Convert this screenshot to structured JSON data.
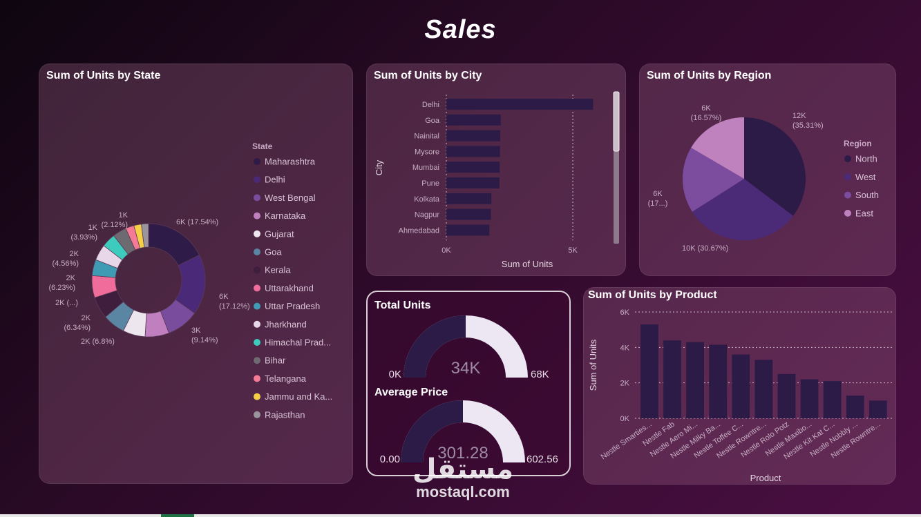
{
  "page": {
    "title": "Sales"
  },
  "colors": {
    "maharashtra": "#2f1b47",
    "delhi": "#4a2a78",
    "west_bengal": "#7a4c9e",
    "karnataka": "#c07fbf",
    "gujarat": "#eee6ef",
    "goa": "#5a86a4",
    "kerala": "#3e1e3c",
    "uttarakhand": "#f06c9b",
    "uttar_pradesh": "#3e9bb3",
    "jharkhand": "#e8d7e8",
    "himachal": "#3ccbbd",
    "bihar": "#6d6a72",
    "telangana": "#f47a95",
    "jammu": "#f5cf45",
    "rajasthan": "#9a949c",
    "north": "#2d1b47",
    "west": "#4b2a78",
    "south": "#7c4c9e",
    "east": "#bf82bf",
    "bar": "#2d1b47",
    "gauge_fill": "#2d1b47",
    "gauge_empty": "#ece7f2"
  },
  "chart_data": [
    {
      "id": "state",
      "type": "pie",
      "title": "Sum of Units by State",
      "legend_title": "State",
      "categories": [
        "Maharashtra",
        "Delhi",
        "West Bengal",
        "Karnataka",
        "Gujarat",
        "Goa",
        "Kerala",
        "Uttarakhand",
        "Uttar Pradesh",
        "Jharkhand",
        "Himachal Prad...",
        "Bihar",
        "Telangana",
        "Jammu and Ka...",
        "Rajasthan"
      ],
      "values": [
        17.54,
        17.12,
        9.14,
        6.8,
        6.34,
        6.34,
        6.23,
        6.23,
        4.56,
        4.56,
        3.93,
        3.93,
        2.4,
        2.12,
        2.02
      ],
      "data_labels": [
        {
          "value": "6K (17.54%)"
        },
        {
          "value": "6K",
          "pct": "(17.12%)"
        },
        {
          "value": "3K",
          "pct": "(9.14%)"
        },
        {
          "value": "2K (6.8%)"
        },
        {
          "value": "2K",
          "pct": "(6.34%)"
        },
        {
          "value": "2K (...)"
        },
        {
          "value": "2K",
          "pct": "(6.23%)"
        },
        {
          "value": "2K",
          "pct": "(4.56%)"
        },
        {
          "value": "1K",
          "pct": "(3.93%)"
        },
        {
          "value": "1K",
          "pct": "(2.12%)"
        }
      ]
    },
    {
      "id": "city",
      "type": "bar",
      "orientation": "horizontal",
      "title": "Sum of Units by City",
      "categories": [
        "Delhi",
        "Goa",
        "Nainital",
        "Mysore",
        "Mumbai",
        "Pune",
        "Kolkata",
        "Nagpur",
        "Ahmedabad"
      ],
      "values": [
        5800,
        2150,
        2130,
        2120,
        2110,
        2100,
        1780,
        1760,
        1700
      ],
      "xlabel": "Sum of Units",
      "ylabel": "City",
      "xticks": [
        "0K",
        "5K"
      ],
      "xlim": [
        0,
        6200
      ]
    },
    {
      "id": "region",
      "type": "pie",
      "title": "Sum of Units by Region",
      "legend_title": "Region",
      "categories": [
        "North",
        "West",
        "South",
        "East"
      ],
      "values": [
        35.31,
        30.67,
        17.45,
        16.57
      ],
      "data_labels": [
        {
          "value": "12K",
          "pct": "(35.31%)"
        },
        {
          "value": "10K (30.67%)"
        },
        {
          "value": "6K",
          "pct": "(17...)"
        },
        {
          "value": "6K",
          "pct": "(16.57%)"
        }
      ]
    },
    {
      "id": "product",
      "type": "bar",
      "title": "Sum of Units by Product",
      "categories": [
        "Nestle Smarties...",
        "Nestle Fab",
        "Nestle Aero Mi...",
        "Nestle Milky Ba...",
        "Nestle Toffee C...",
        "Nestle Rowntre...",
        "Nestle Rolo Potz",
        "Nestle Maxibo...",
        "Nestle Kit Kat C...",
        "Nestle Nobbly ...",
        "Nestle Rowntre..."
      ],
      "values": [
        5300,
        4400,
        4300,
        4150,
        3600,
        3300,
        2500,
        2200,
        2100,
        1280,
        1000
      ],
      "xlabel": "Product",
      "ylabel": "Sum of Units",
      "yticks": [
        "0K",
        "2K",
        "4K",
        "6K"
      ],
      "ylim": [
        0,
        6000
      ]
    },
    {
      "id": "total_units",
      "type": "gauge",
      "title": "Total Units",
      "value": 34000,
      "max": 68000,
      "value_label": "34K",
      "min_label": "0K",
      "max_label": "68K"
    },
    {
      "id": "average_price",
      "type": "gauge",
      "title": "Average Price",
      "value": 301.28,
      "max": 602.56,
      "value_label": "301.28",
      "min_label": "0.00",
      "max_label": "602.56"
    }
  ],
  "watermark": {
    "arabic": "مستقل",
    "latin": "mostaql.com"
  }
}
